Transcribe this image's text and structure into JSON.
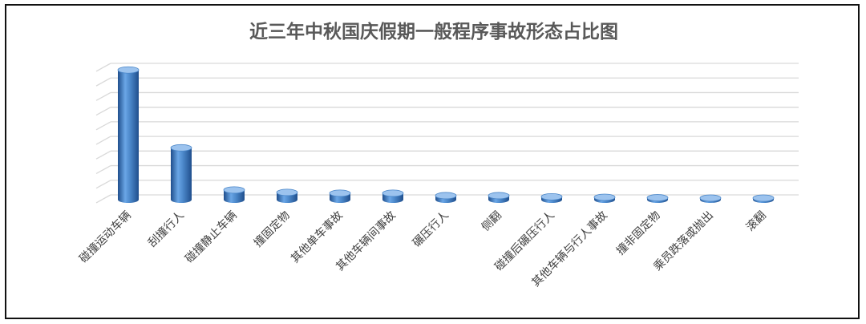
{
  "chart_data": {
    "type": "bar",
    "style": "3d-cylinder",
    "title": "近三年中秋国庆假期一般程序事故形态占比图",
    "categories": [
      "碰撞运动车辆",
      "刮撞行人",
      "碰撞静止车辆",
      "撞固定物",
      "其他单车事故",
      "其他车辆间事故",
      "碾压行人",
      "侧翻",
      "碰撞后碾压行人",
      "其他车辆与行人事故",
      "撞非固定物",
      "乘员跌落或抛出",
      "滚翻"
    ],
    "values": [
      80,
      32,
      6,
      4.5,
      4,
      4,
      2.5,
      2.5,
      1.8,
      1.5,
      1.2,
      1.0,
      0.8
    ],
    "ylim": [
      0,
      90
    ],
    "grid": true,
    "legend": "none",
    "colors": {
      "bar": "#4a86c8",
      "bar_dark": "#1f4e8c",
      "bar_light": "#9cc3ee",
      "grid": "#d9d9d9",
      "title": "#595959",
      "label": "#404040"
    }
  }
}
